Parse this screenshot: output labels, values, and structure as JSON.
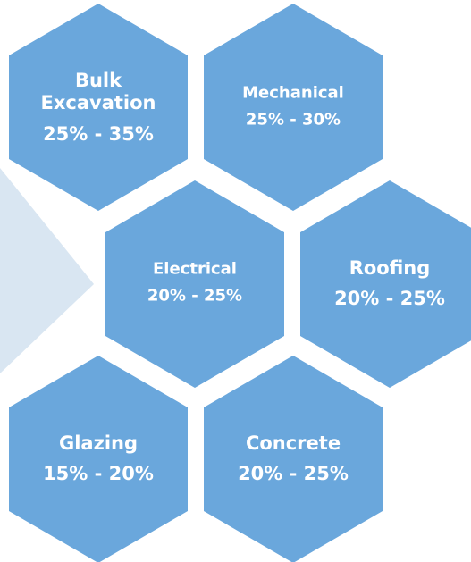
{
  "colors": {
    "hexagon_fill": "#6aa7dc",
    "arrow_fill": "#d9e6f2",
    "text": "#ffffff",
    "background": "#ffffff"
  },
  "hexagons": [
    {
      "id": "bulk-excavation",
      "name_lines": [
        "Bulk",
        "Excavation"
      ],
      "range": "25% - 35%"
    },
    {
      "id": "mechanical",
      "name_lines": [
        "Mechanical"
      ],
      "range": "25% - 30%"
    },
    {
      "id": "electrical",
      "name_lines": [
        "Electrical"
      ],
      "range": "20% - 25%"
    },
    {
      "id": "roofing",
      "name_lines": [
        "Roofing"
      ],
      "range": "20% - 25%"
    },
    {
      "id": "glazing",
      "name_lines": [
        "Glazing"
      ],
      "range": "15% - 20%"
    },
    {
      "id": "concrete",
      "name_lines": [
        "Concrete"
      ],
      "range": "20% - 25%"
    }
  ]
}
